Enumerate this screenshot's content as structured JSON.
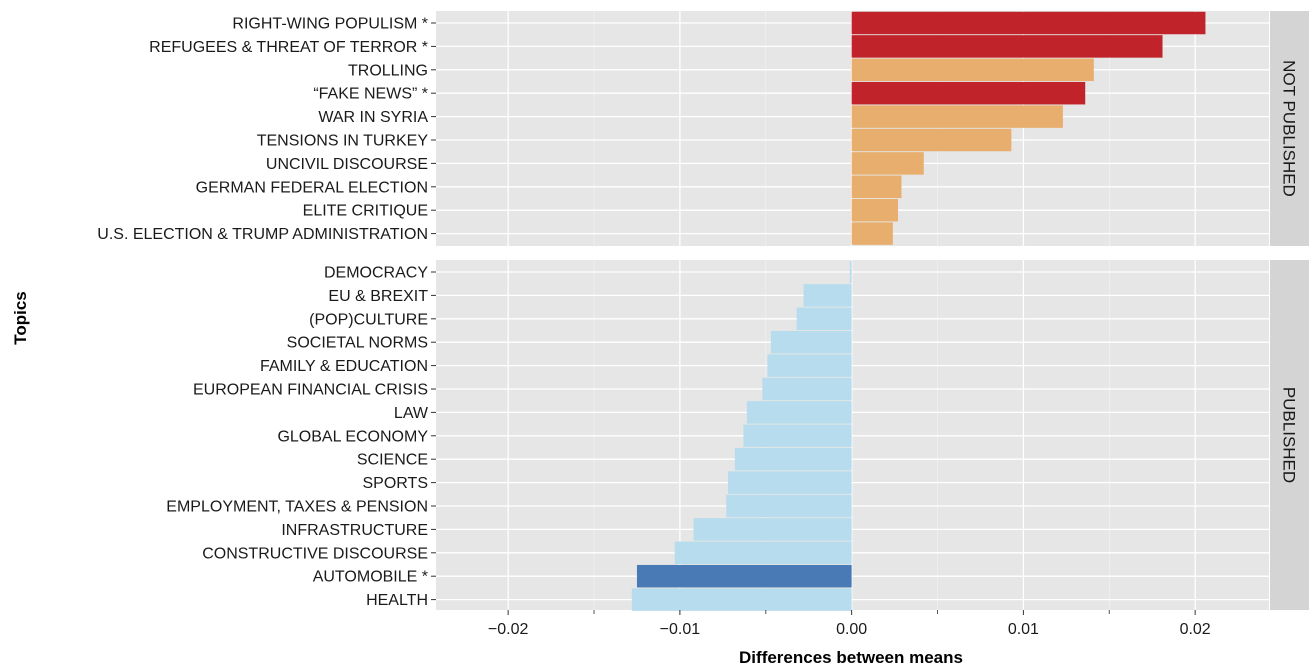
{
  "chart_data": {
    "type": "bar",
    "orientation": "horizontal",
    "xlabel": "Differences between means",
    "ylabel": "Topics",
    "xlim": [
      -0.0242,
      0.0243
    ],
    "xticks": [
      -0.02,
      -0.01,
      0.0,
      0.01,
      0.02
    ],
    "xtick_labels": [
      "−0.02",
      "−0.01",
      "0.00",
      "0.01",
      "0.02"
    ],
    "grid": true,
    "colors": {
      "significant_not_published": "#c0232a",
      "not_published": "#e8ae6d",
      "significant_published": "#4a7ab5",
      "published": "#b7dced",
      "panel_bg": "#e6e6e6",
      "strip_bg": "#d4d4d4"
    },
    "panels": [
      {
        "strip": "NOT PUBLISHED",
        "bars": [
          {
            "label": "RIGHT-WING POPULISM *",
            "value": 0.0206,
            "significant": true
          },
          {
            "label": "REFUGEES & THREAT OF TERROR *",
            "value": 0.0181,
            "significant": true
          },
          {
            "label": "TROLLING",
            "value": 0.0141,
            "significant": false
          },
          {
            "label": "“FAKE NEWS” *",
            "value": 0.0136,
            "significant": true
          },
          {
            "label": "WAR IN SYRIA",
            "value": 0.0123,
            "significant": false
          },
          {
            "label": "TENSIONS IN TURKEY",
            "value": 0.0093,
            "significant": false
          },
          {
            "label": "UNCIVIL DISCOURSE",
            "value": 0.0042,
            "significant": false
          },
          {
            "label": "GERMAN FEDERAL ELECTION",
            "value": 0.0029,
            "significant": false
          },
          {
            "label": "ELITE CRITIQUE",
            "value": 0.0027,
            "significant": false
          },
          {
            "label": "U.S. ELECTION & TRUMP ADMINISTRATION",
            "value": 0.0024,
            "significant": false
          }
        ]
      },
      {
        "strip": "PUBLISHED",
        "bars": [
          {
            "label": "DEMOCRACY",
            "value": -0.0001,
            "significant": false
          },
          {
            "label": "EU & BREXIT",
            "value": -0.0028,
            "significant": false
          },
          {
            "label": "(POP)CULTURE",
            "value": -0.0032,
            "significant": false
          },
          {
            "label": "SOCIETAL NORMS",
            "value": -0.0047,
            "significant": false
          },
          {
            "label": "FAMILY & EDUCATION",
            "value": -0.0049,
            "significant": false
          },
          {
            "label": "EUROPEAN FINANCIAL CRISIS",
            "value": -0.0052,
            "significant": false
          },
          {
            "label": "LAW",
            "value": -0.0061,
            "significant": false
          },
          {
            "label": "GLOBAL ECONOMY",
            "value": -0.0063,
            "significant": false
          },
          {
            "label": "SCIENCE",
            "value": -0.0068,
            "significant": false
          },
          {
            "label": "SPORTS",
            "value": -0.0072,
            "significant": false
          },
          {
            "label": "EMPLOYMENT, TAXES & PENSION",
            "value": -0.0073,
            "significant": false
          },
          {
            "label": "INFRASTRUCTURE",
            "value": -0.0092,
            "significant": false
          },
          {
            "label": "CONSTRUCTIVE DISCOURSE",
            "value": -0.0103,
            "significant": false
          },
          {
            "label": "AUTOMOBILE *",
            "value": -0.0125,
            "significant": true
          },
          {
            "label": "HEALTH",
            "value": -0.0128,
            "significant": false
          }
        ]
      }
    ]
  }
}
